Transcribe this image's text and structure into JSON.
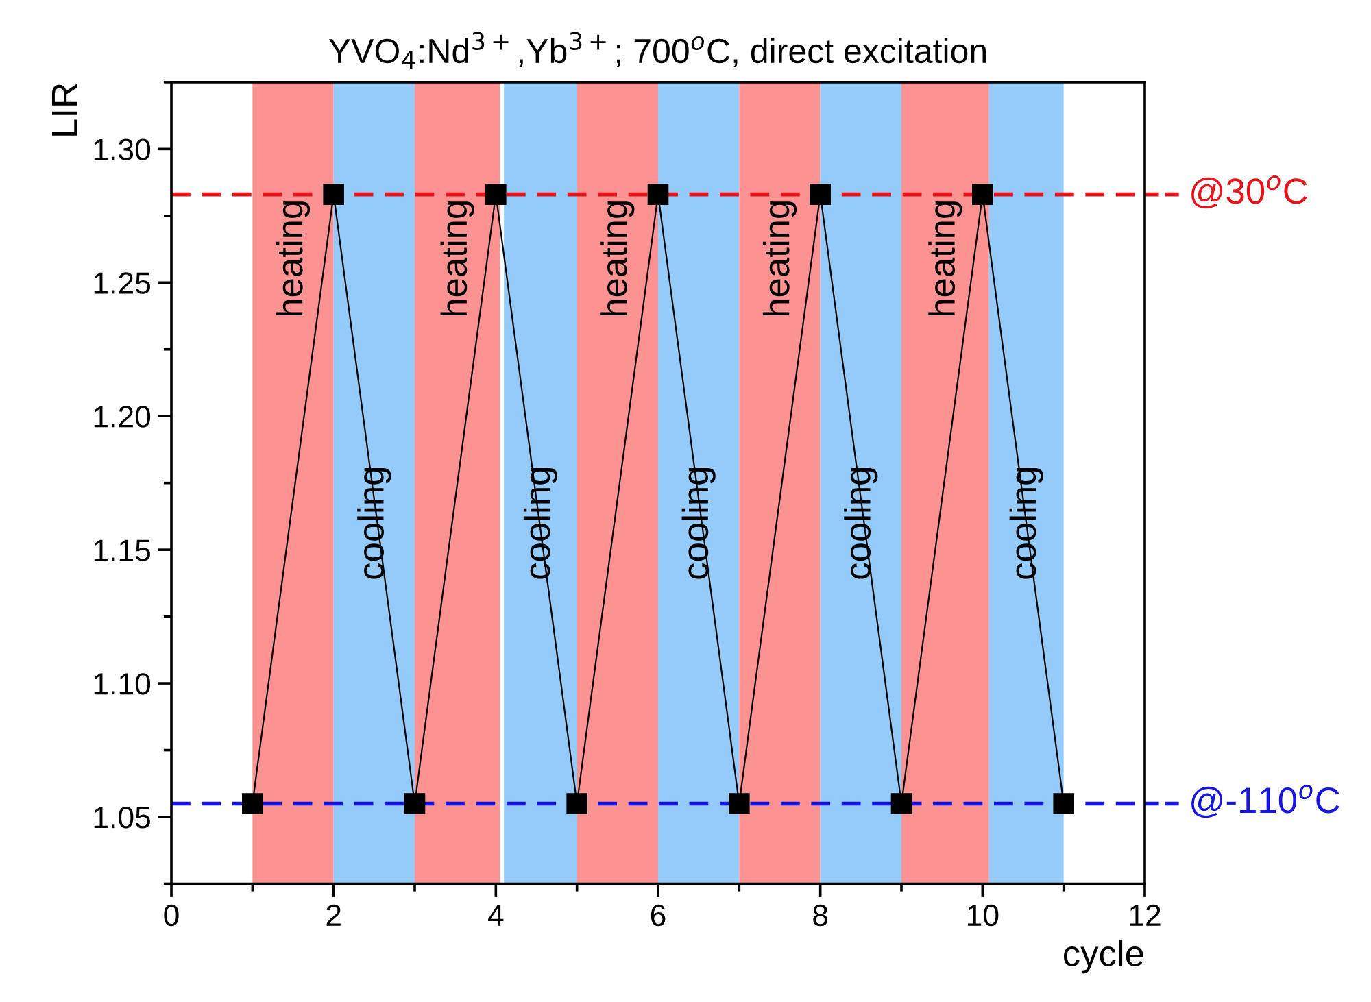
{
  "chart_data": {
    "type": "line",
    "title": "YVO$_{4}$:Nd$^{3+}$,Yb$^{3+}$; 700$^{o}$C, direct excitation",
    "xlabel": "cycle",
    "ylabel": "LIR",
    "x": [
      1,
      2,
      3,
      4,
      5,
      6,
      7,
      8,
      9,
      10,
      11
    ],
    "series": [
      {
        "color": "#000000",
        "values": [
          1.055,
          1.283,
          1.055,
          1.283,
          1.055,
          1.283,
          1.055,
          1.283,
          1.055,
          1.283,
          1.055
        ]
      }
    ],
    "marker": "square",
    "line_style": "solid",
    "xlim": [
      0,
      12
    ],
    "xticks": [
      0,
      2,
      4,
      6,
      8,
      10,
      12
    ],
    "ylim": [
      1.025,
      1.325
    ],
    "yticks": [
      {
        "value": 1.05,
        "label": "1.05"
      },
      {
        "value": 1.1,
        "label": "1.10"
      },
      {
        "value": 1.15,
        "label": "1.15"
      },
      {
        "value": 1.2,
        "label": "1.20"
      },
      {
        "value": 1.25,
        "label": "1.25"
      },
      {
        "value": 1.3,
        "label": "1.30"
      }
    ],
    "ref_lines": [
      {
        "axis": "y",
        "value": 1.283,
        "label": "@30$^{o}$C",
        "color": "#e8141b",
        "line_style": "dashed"
      },
      {
        "axis": "y",
        "value": 1.055,
        "label": "@-110$^{o}$C",
        "color": "#1616e0",
        "line_style": "dashed"
      }
    ],
    "bands": [
      {
        "axis": "x",
        "from": 1,
        "to": 2,
        "label": "heating",
        "color": "#fc9292"
      },
      {
        "axis": "x",
        "from": 2,
        "to": 3,
        "label": "cooling",
        "color": "#94cbfa"
      },
      {
        "axis": "x",
        "from": 3,
        "to": 4.05,
        "label": "heating",
        "color": "#fc9292"
      },
      {
        "axis": "x",
        "from": 4.1,
        "to": 5,
        "label": "cooling",
        "color": "#94cbfa"
      },
      {
        "axis": "x",
        "from": 5,
        "to": 6,
        "label": "heating",
        "color": "#fc9292"
      },
      {
        "axis": "x",
        "from": 6,
        "to": 7,
        "label": "cooling",
        "color": "#94cbfa"
      },
      {
        "axis": "x",
        "from": 7,
        "to": 8,
        "label": "heating",
        "color": "#fc9292"
      },
      {
        "axis": "x",
        "from": 8,
        "to": 9,
        "label": "cooling",
        "color": "#94cbfa"
      },
      {
        "axis": "x",
        "from": 9,
        "to": 10.08,
        "label": "heating",
        "color": "#fc9292"
      },
      {
        "axis": "x",
        "from": 10.08,
        "to": 11,
        "label": "cooling",
        "color": "#94cbfa"
      }
    ],
    "grid": false
  }
}
